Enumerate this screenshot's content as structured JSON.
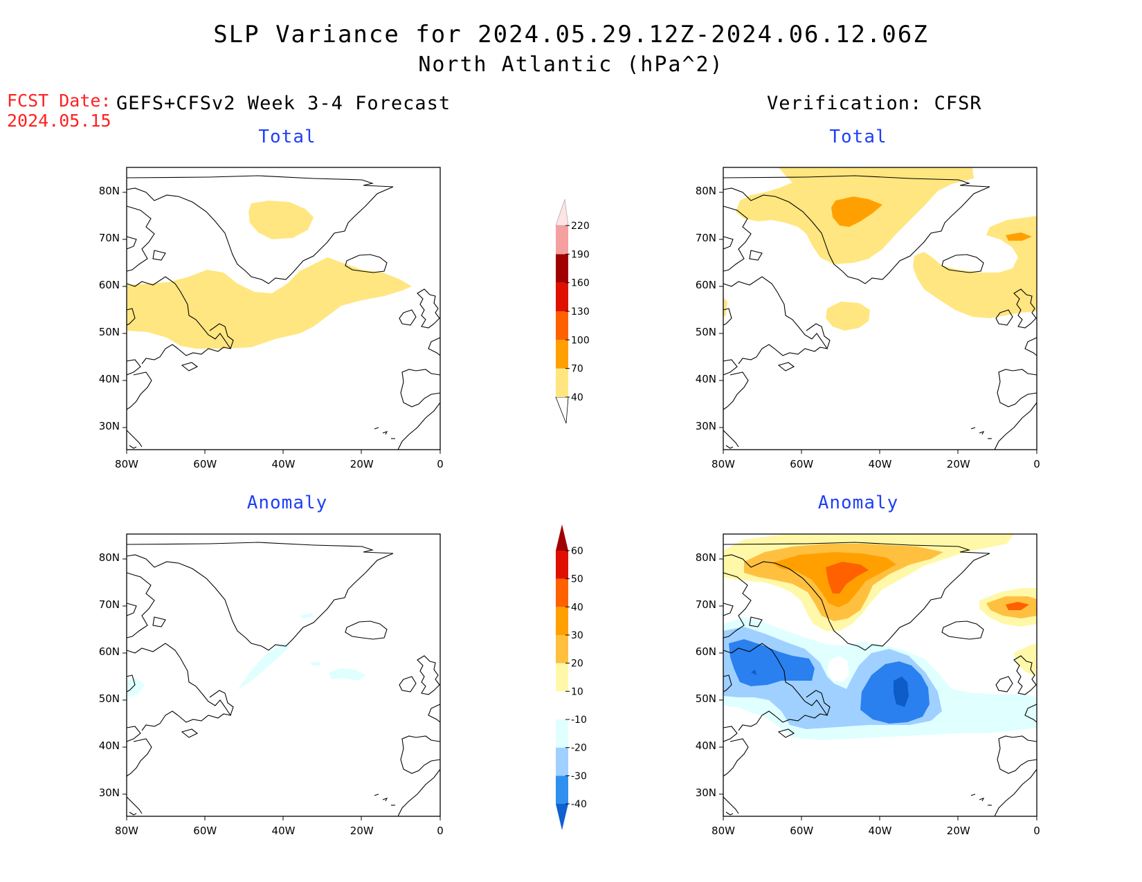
{
  "title": {
    "line1": "SLP Variance for 2024.05.29.12Z-2024.06.12.06Z",
    "line2": "North Atlantic (hPa^2)"
  },
  "fcst": {
    "label": "FCST Date:",
    "date": "2024.05.15"
  },
  "headers": {
    "left": "GEFS+CFSv2 Week 3-4 Forecast",
    "right": "Verification: CFSR"
  },
  "panels": {
    "total_forecast": {
      "title": "Total"
    },
    "total_verification": {
      "title": "Total"
    },
    "anomaly_forecast": {
      "title": "Anomaly"
    },
    "anomaly_verification": {
      "title": "Anomaly"
    }
  },
  "axes": {
    "lat_labels": [
      "80N",
      "70N",
      "60N",
      "50N",
      "40N",
      "30N"
    ],
    "lat_values": [
      80,
      70,
      60,
      50,
      40,
      30
    ],
    "lon_labels": [
      "80W",
      "60W",
      "40W",
      "20W",
      "0"
    ],
    "lon_values": [
      -80,
      -60,
      -40,
      -20,
      0
    ],
    "lon_range": [
      -80,
      0
    ],
    "lat_range": [
      25,
      85
    ]
  },
  "colorbars": {
    "total": {
      "levels": [
        40,
        70,
        100,
        130,
        160,
        190,
        220
      ],
      "labels": [
        "40",
        "70",
        "100",
        "130",
        "160",
        "190",
        "220"
      ],
      "colors": [
        "#ffffff",
        "#ffe680",
        "#ffa000",
        "#ff6000",
        "#e01000",
        "#a00000",
        "#f4a0a0",
        "#ffe4e4"
      ]
    },
    "anomaly": {
      "levels": [
        -40,
        -30,
        -20,
        -10,
        10,
        20,
        30,
        40,
        50,
        60
      ],
      "labels": [
        "-40",
        "-30",
        "-20",
        "-10",
        "10",
        "20",
        "30",
        "40",
        "50",
        "60"
      ],
      "colors": [
        "#1060d0",
        "#3090f0",
        "#a0d0ff",
        "#e0ffff",
        "#ffffff",
        "#fff8a8",
        "#ffc040",
        "#ffa000",
        "#ff6000",
        "#e01000",
        "#a00000"
      ]
    }
  }
}
